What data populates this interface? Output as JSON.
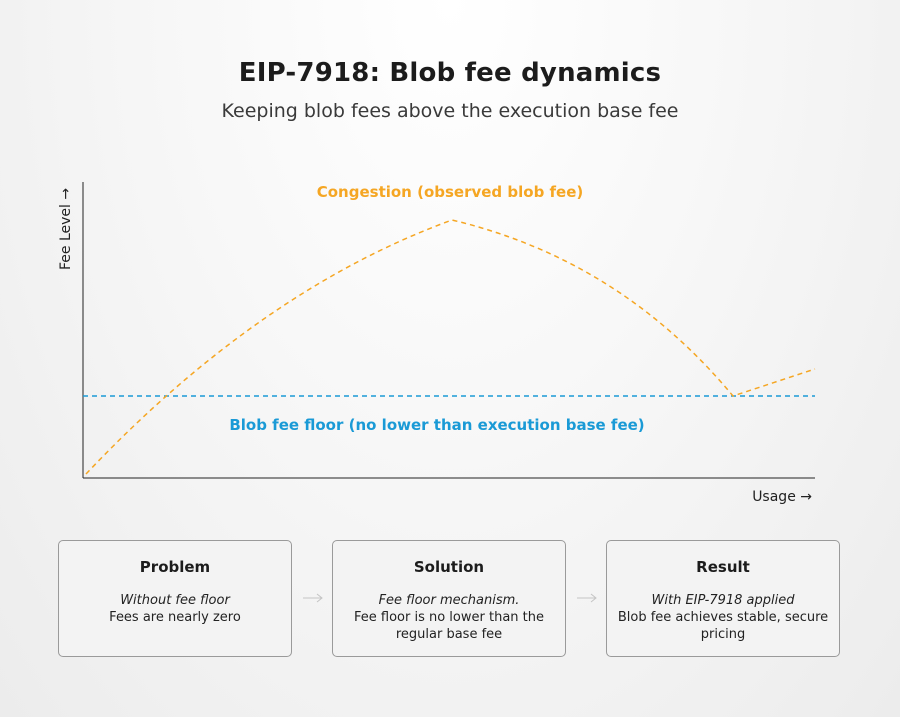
{
  "header": {
    "title": "EIP-7918: Blob fee dynamics",
    "subtitle": "Keeping blob fees above the execution base fee"
  },
  "chart": {
    "y_label": "Fee Level →",
    "x_label": "Usage →",
    "congestion_label": "Congestion (observed blob fee)",
    "floor_label": "Blob fee floor (no lower than execution base fee)",
    "colors": {
      "congestion": "#f5a623",
      "floor": "#1a9ad6",
      "axis": "#222222"
    }
  },
  "steps": [
    {
      "title": "Problem",
      "subtitle": "Without fee floor",
      "body": "Fees are nearly zero"
    },
    {
      "title": "Solution",
      "subtitle": "Fee floor mechanism.",
      "body": "Fee floor is no lower than the regular base fee"
    },
    {
      "title": "Result",
      "subtitle": "With EIP-7918 applied",
      "body": "Blob fee achieves stable, secure pricing"
    }
  ]
}
